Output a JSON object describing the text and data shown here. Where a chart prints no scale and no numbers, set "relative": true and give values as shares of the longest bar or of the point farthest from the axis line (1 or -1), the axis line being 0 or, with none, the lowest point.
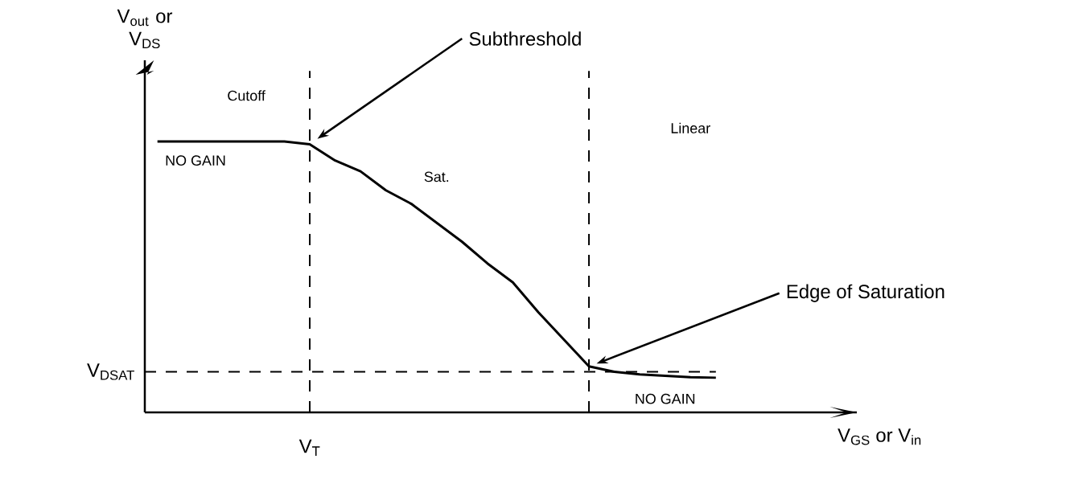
{
  "chart_data": {
    "type": "line",
    "relative": true,
    "ylabel": "V$_{out}$ or V$_{DS}$",
    "categories": [
      null,
      null,
      null,
      null,
      null,
      null,
      null,
      null,
      null,
      null,
      null,
      null,
      null,
      null,
      null,
      null,
      null,
      null,
      null,
      null,
      null,
      null,
      null
    ],
    "series": [
      {
        "color": "#000000",
        "values": [
          1.0,
          1.0,
          1.0,
          1.0,
          1.0,
          1.0,
          0.99,
          0.93,
          0.89,
          0.82,
          0.77,
          0.7,
          0.63,
          0.55,
          0.48,
          0.37,
          0.27,
          0.17,
          0.15,
          0.14,
          0.135,
          0.13,
          0.128
        ]
      }
    ],
    "ref_lines": [
      {
        "axis": "y",
        "value": 0.15,
        "label": "V$_{DSAT}$",
        "line_style": "dashed",
        "color": "#000000"
      }
    ],
    "annotations": [
      "Cutoff",
      "Subthreshold",
      "Linear",
      "NO GAIN",
      "Sat.",
      "Edge of Saturation",
      "NO GAIN",
      "V$_{T}$",
      "V$_{GS}$ or V$_{in}$"
    ]
  }
}
